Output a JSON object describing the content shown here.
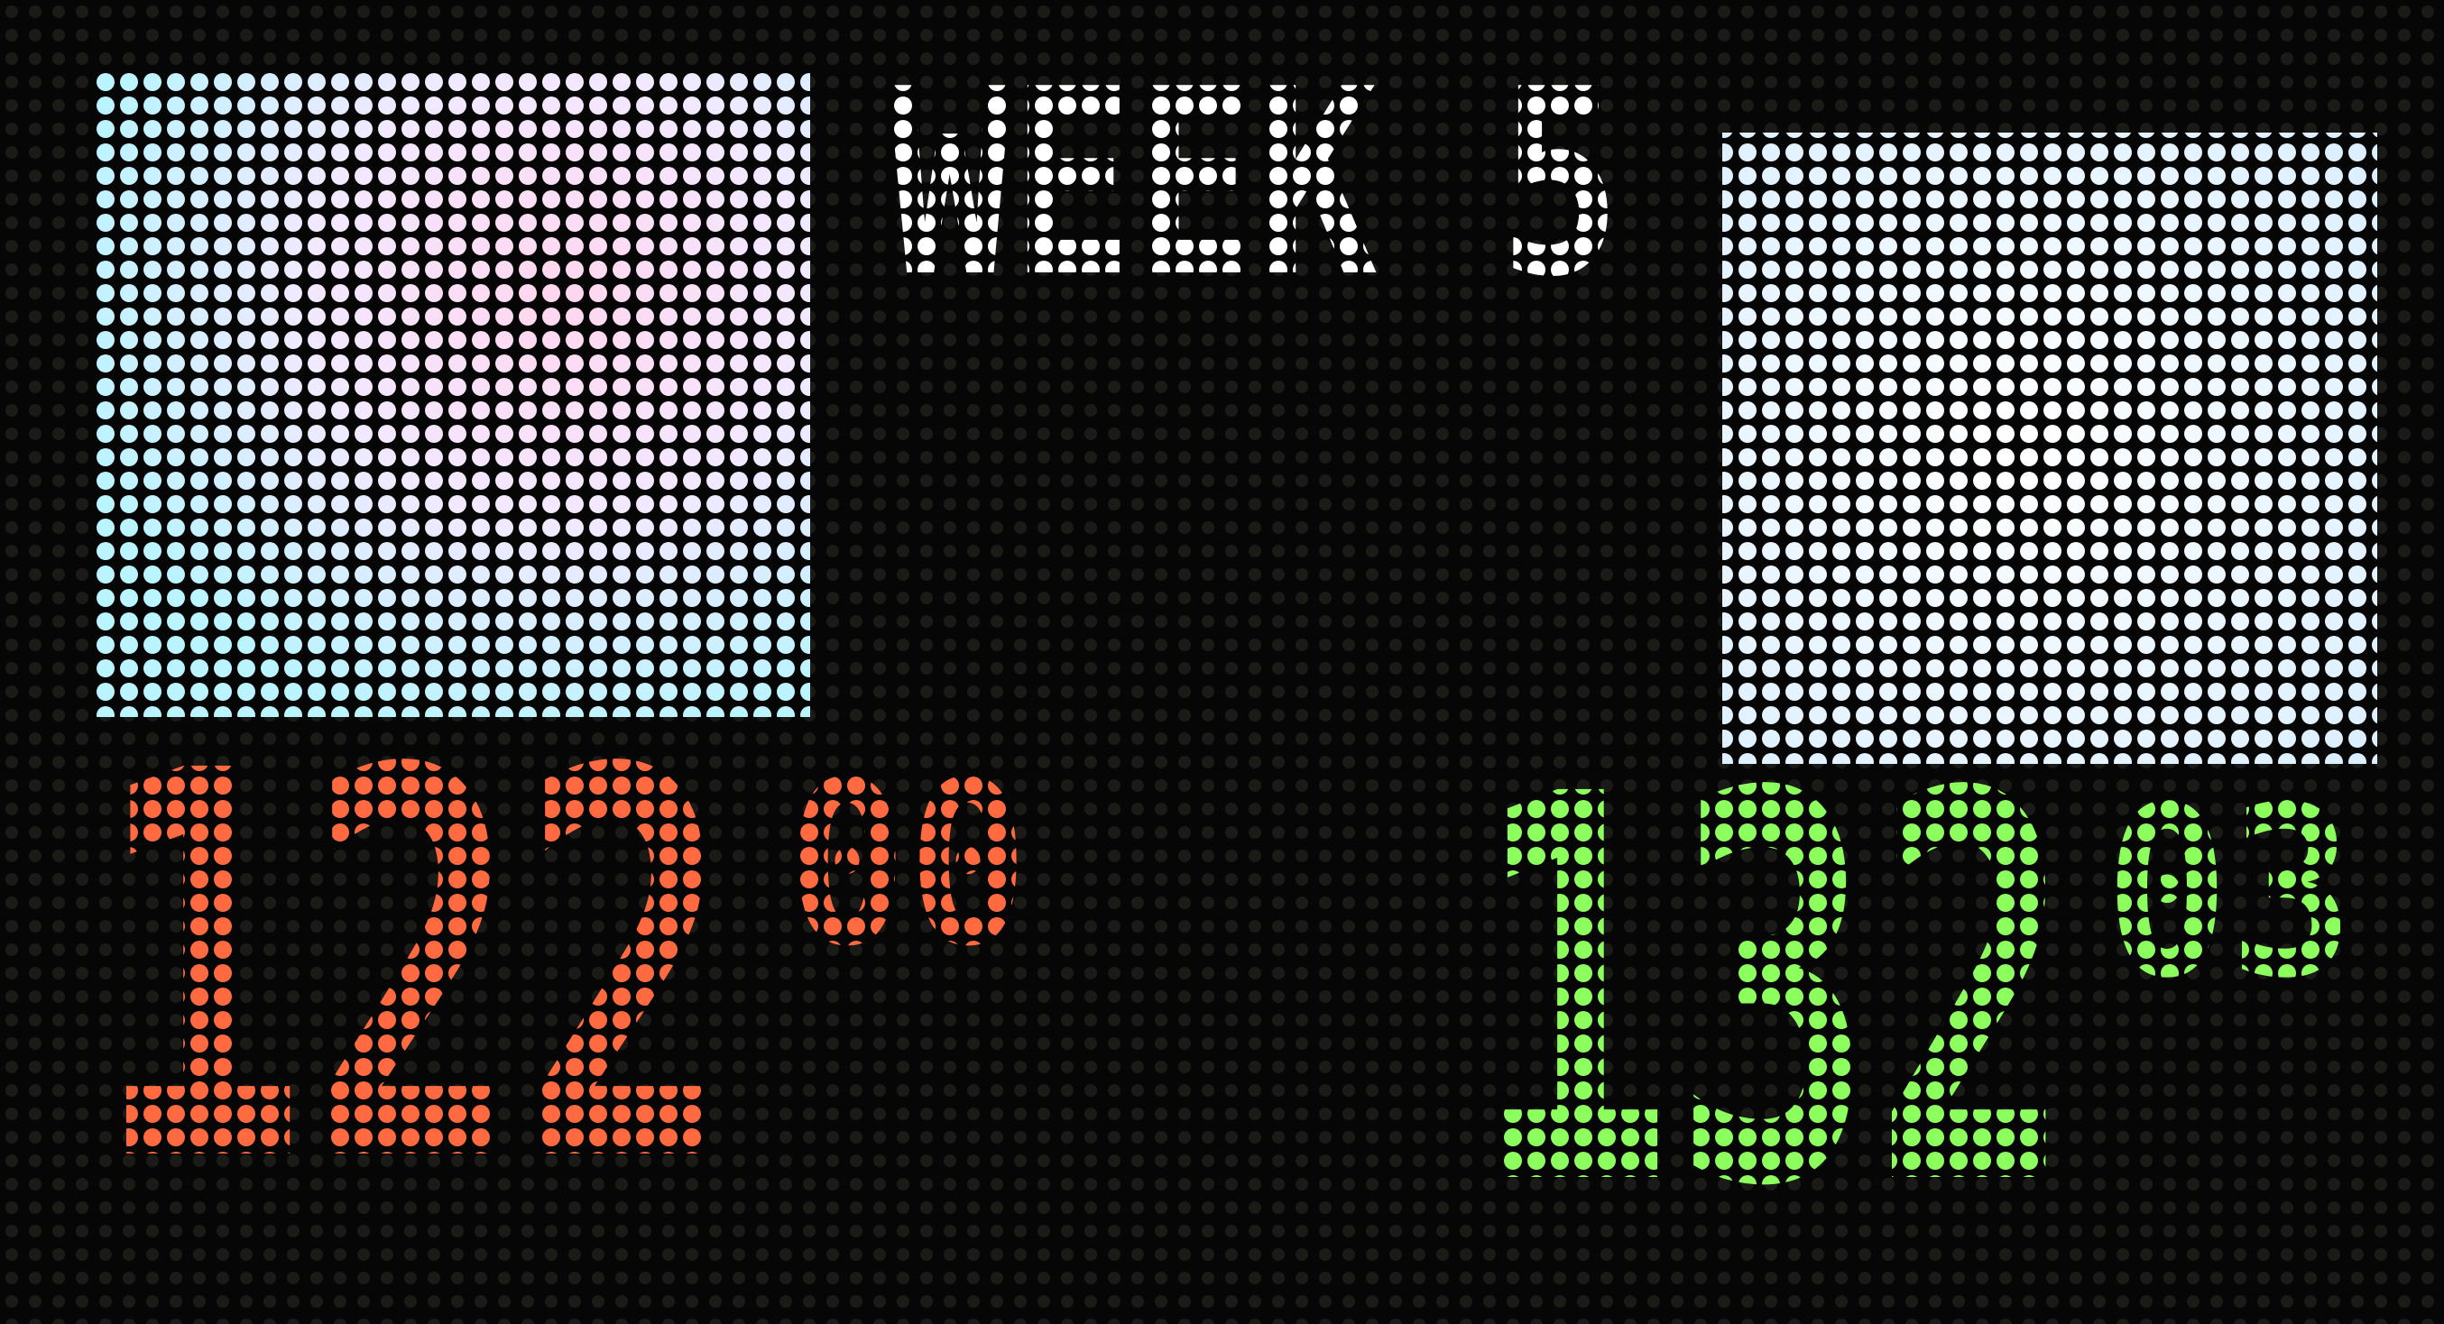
{
  "header": {
    "title": "WEEK 5"
  },
  "scores": [
    {
      "whole": "122",
      "fraction": "00"
    },
    {
      "whole": "132",
      "fraction": "03"
    }
  ]
}
